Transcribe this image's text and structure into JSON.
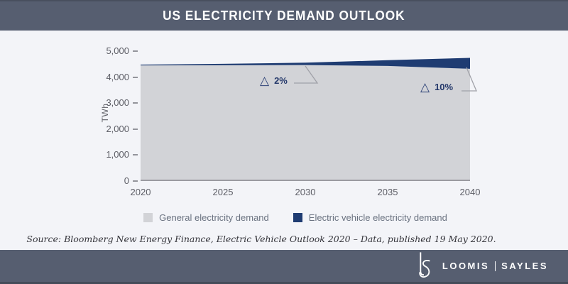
{
  "header": {
    "title": "US ELECTRICITY DEMAND OUTLOOK"
  },
  "chart_data": {
    "type": "area",
    "stacked": true,
    "x": [
      2020,
      2025,
      2030,
      2035,
      2040
    ],
    "series": [
      {
        "name": "General electricity demand",
        "color": "#d2d3d7",
        "values": [
          4450,
          4455,
          4465,
          4430,
          4320
        ]
      },
      {
        "name": "Electric vehicle electricity demand",
        "color": "#1f3c72",
        "values": [
          30,
          55,
          90,
          220,
          420
        ]
      }
    ],
    "ylabel": "TWh",
    "xlabel": "",
    "ylim": [
      0,
      5000
    ],
    "yticks": [
      0,
      1000,
      2000,
      3000,
      4000,
      5000
    ],
    "ytick_labels": [
      "0",
      "1,000",
      "2,000",
      "3,000",
      "4,000",
      "5,000"
    ],
    "xticks": [
      2020,
      2025,
      2030,
      2035,
      2040
    ],
    "xtick_labels": [
      "2020",
      "2025",
      "2030",
      "2035",
      "2040"
    ],
    "grid": false,
    "legend_position": "bottom",
    "annotations": [
      {
        "symbol": "△",
        "label": "2%"
      },
      {
        "symbol": "△",
        "label": "10%"
      }
    ]
  },
  "source": {
    "text": "Source: Bloomberg New Energy Finance, Electric Vehicle Outlook 2020 – Data, published 19 May 2020."
  },
  "footer": {
    "monogram": "LS",
    "brand_left": "LOOMIS",
    "brand_right": "SAYLES"
  },
  "colors": {
    "band": "#565e70",
    "band_edge": "#484f5e",
    "page_bg": "#f3f4f8",
    "general_area": "#d2d3d7",
    "ev_area": "#1f3c72",
    "axis_text": "#5d5e66",
    "callout_line": "#a0a1a8"
  }
}
